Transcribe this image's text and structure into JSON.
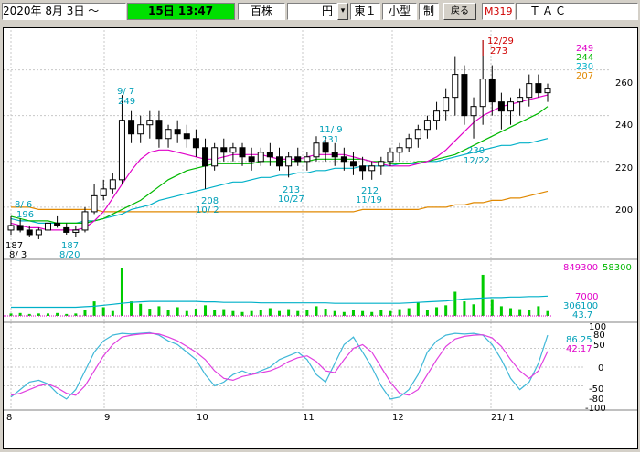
{
  "toolbar": {
    "date_label": "2020年 8月 3日 ～",
    "time_value": "15日 13:47",
    "kind": "百株",
    "currency": "円",
    "currency_arrow": "▾",
    "market": "東１",
    "size": "小型",
    "system": "制",
    "back_button": "戻る",
    "code": "M319",
    "company": "ＴＡＣ"
  },
  "colors": {
    "price": "#000000",
    "ma_short": "#e000c8",
    "ma_mid": "#00b800",
    "ma_long": "#00b0c8",
    "ma_xlong": "#e08800",
    "volume": "#00cc00",
    "stoch_k": "#40b8d8",
    "stoch_d": "#e040e0",
    "label_teal": "#00a0b8",
    "label_red": "#d00000",
    "time_bg": "#00e000"
  },
  "chart_data": [
    {
      "type": "candlestick",
      "ylim": [
        180,
        275
      ],
      "yticks": [
        "260",
        "240",
        "220",
        "200"
      ],
      "ma_legend": [
        "249",
        "244",
        "230",
        "207"
      ],
      "xticks": [
        "8",
        "9",
        "10",
        "11",
        "12",
        "21/ 1"
      ],
      "annotations": {
        "low_8_3_price": "187",
        "low_8_3_date": "8/ 3",
        "high_8_6_date": "8/ 6",
        "high_8_6_price": "196",
        "low_8_20_price": "187",
        "low_8_20_date": "8/20",
        "high_9_7_date": "9/ 7",
        "high_9_7_price": "249",
        "low_10_2_price": "208",
        "low_10_2_date": "10/ 2",
        "low_10_27_price": "213",
        "low_10_27_date": "10/27",
        "high_11_9_date": "11/ 9",
        "high_11_9_price": "231",
        "low_11_19_price": "212",
        "low_11_19_date": "11/19",
        "high_12_29_date": "12/29",
        "high_12_29_price": "273",
        "low_12_22_price": "230",
        "low_12_22_date": "12/22"
      },
      "ma_short": [
        193,
        192,
        191,
        191,
        190,
        190,
        190,
        190,
        191,
        194,
        198,
        204,
        210,
        216,
        221,
        224,
        225,
        225,
        224,
        223,
        222,
        221,
        221,
        222,
        223,
        223,
        223,
        223,
        222,
        221,
        221,
        221,
        222,
        223,
        223,
        223,
        223,
        222,
        221,
        220,
        219,
        218,
        218,
        218,
        219,
        220,
        222,
        225,
        229,
        233,
        237,
        240,
        242,
        244,
        245,
        246,
        247,
        248,
        249
      ],
      "ma_mid": [
        196,
        195,
        194,
        194,
        194,
        193,
        193,
        193,
        193,
        194,
        195,
        197,
        199,
        201,
        203,
        206,
        209,
        212,
        214,
        216,
        217,
        218,
        219,
        219,
        219,
        219,
        219,
        220,
        220,
        220,
        220,
        220,
        220,
        221,
        221,
        221,
        221,
        221,
        221,
        220,
        220,
        219,
        219,
        219,
        220,
        220,
        221,
        222,
        223,
        225,
        227,
        229,
        231,
        233,
        235,
        237,
        239,
        241,
        244
      ],
      "ma_long": [
        195,
        194,
        194,
        193,
        193,
        193,
        193,
        193,
        194,
        194,
        195,
        196,
        197,
        199,
        200,
        201,
        203,
        204,
        205,
        206,
        207,
        208,
        209,
        210,
        211,
        211,
        212,
        213,
        213,
        214,
        214,
        215,
        215,
        216,
        216,
        217,
        217,
        217,
        218,
        218,
        218,
        218,
        219,
        219,
        219,
        220,
        220,
        221,
        222,
        223,
        224,
        225,
        226,
        227,
        227,
        228,
        228,
        229,
        230
      ],
      "ma_xlong": [
        200,
        200,
        200,
        199,
        199,
        199,
        199,
        199,
        199,
        199,
        198,
        198,
        198,
        198,
        198,
        198,
        198,
        198,
        198,
        198,
        198,
        198,
        198,
        198,
        198,
        198,
        198,
        198,
        198,
        198,
        198,
        198,
        198,
        198,
        198,
        198,
        198,
        198,
        199,
        199,
        199,
        199,
        199,
        199,
        199,
        200,
        200,
        200,
        201,
        201,
        202,
        202,
        203,
        203,
        204,
        204,
        205,
        206,
        207
      ],
      "candles": [
        [
          190,
          196,
          188,
          192
        ],
        [
          192,
          195,
          189,
          190
        ],
        [
          190,
          192,
          187,
          188
        ],
        [
          188,
          191,
          186,
          190
        ],
        [
          190,
          194,
          189,
          193
        ],
        [
          193,
          196,
          191,
          192
        ],
        [
          191,
          193,
          188,
          189
        ],
        [
          189,
          192,
          187,
          190
        ],
        [
          190,
          200,
          189,
          198
        ],
        [
          198,
          210,
          197,
          205
        ],
        [
          205,
          212,
          203,
          208
        ],
        [
          208,
          215,
          206,
          212
        ],
        [
          212,
          249,
          210,
          238
        ],
        [
          238,
          242,
          228,
          232
        ],
        [
          232,
          240,
          228,
          236
        ],
        [
          236,
          242,
          230,
          238
        ],
        [
          238,
          242,
          226,
          230
        ],
        [
          230,
          236,
          226,
          234
        ],
        [
          234,
          238,
          228,
          232
        ],
        [
          232,
          236,
          226,
          230
        ],
        [
          230,
          234,
          222,
          226
        ],
        [
          226,
          230,
          208,
          218
        ],
        [
          218,
          228,
          216,
          226
        ],
        [
          226,
          230,
          220,
          224
        ],
        [
          224,
          228,
          220,
          226
        ],
        [
          226,
          228,
          218,
          222
        ],
        [
          222,
          226,
          216,
          220
        ],
        [
          220,
          226,
          218,
          224
        ],
        [
          224,
          228,
          218,
          222
        ],
        [
          222,
          226,
          216,
          218
        ],
        [
          218,
          224,
          213,
          222
        ],
        [
          222,
          226,
          218,
          220
        ],
        [
          220,
          224,
          216,
          222
        ],
        [
          222,
          231,
          220,
          228
        ],
        [
          228,
          231,
          220,
          224
        ],
        [
          224,
          228,
          218,
          222
        ],
        [
          222,
          226,
          216,
          220
        ],
        [
          220,
          224,
          214,
          218
        ],
        [
          218,
          222,
          212,
          216
        ],
        [
          216,
          220,
          212,
          218
        ],
        [
          218,
          222,
          214,
          220
        ],
        [
          220,
          226,
          218,
          224
        ],
        [
          224,
          228,
          220,
          226
        ],
        [
          226,
          232,
          224,
          230
        ],
        [
          230,
          236,
          226,
          234
        ],
        [
          234,
          240,
          230,
          238
        ],
        [
          238,
          246,
          234,
          242
        ],
        [
          242,
          252,
          238,
          248
        ],
        [
          248,
          266,
          240,
          258
        ],
        [
          258,
          262,
          236,
          240
        ],
        [
          240,
          248,
          230,
          244
        ],
        [
          244,
          273,
          236,
          256
        ],
        [
          256,
          262,
          240,
          246
        ],
        [
          246,
          250,
          234,
          242
        ],
        [
          242,
          248,
          236,
          246
        ],
        [
          246,
          252,
          240,
          248
        ],
        [
          248,
          258,
          244,
          254
        ],
        [
          254,
          258,
          248,
          250
        ],
        [
          250,
          254,
          246,
          252
        ]
      ]
    },
    {
      "type": "bar",
      "name_values": [
        "849300",
        "58300",
        "7000",
        "306100",
        "43.7"
      ],
      "vol_ma": [
        0.18,
        0.18,
        0.18,
        0.18,
        0.18,
        0.18,
        0.18,
        0.18,
        0.19,
        0.2,
        0.22,
        0.24,
        0.26,
        0.28,
        0.29,
        0.3,
        0.3,
        0.3,
        0.3,
        0.3,
        0.3,
        0.29,
        0.29,
        0.28,
        0.28,
        0.28,
        0.28,
        0.27,
        0.27,
        0.27,
        0.27,
        0.27,
        0.27,
        0.27,
        0.27,
        0.26,
        0.26,
        0.26,
        0.26,
        0.26,
        0.26,
        0.26,
        0.26,
        0.27,
        0.28,
        0.29,
        0.3,
        0.31,
        0.33,
        0.35,
        0.36,
        0.37,
        0.38,
        0.38,
        0.39,
        0.39,
        0.4,
        0.4,
        0.41
      ],
      "values": [
        0.05,
        0.06,
        0.04,
        0.05,
        0.05,
        0.06,
        0.04,
        0.05,
        0.12,
        0.3,
        0.18,
        0.1,
        1.0,
        0.3,
        0.25,
        0.15,
        0.2,
        0.12,
        0.18,
        0.1,
        0.15,
        0.22,
        0.12,
        0.14,
        0.1,
        0.08,
        0.1,
        0.12,
        0.16,
        0.1,
        0.14,
        0.1,
        0.12,
        0.2,
        0.15,
        0.1,
        0.08,
        0.12,
        0.1,
        0.08,
        0.12,
        0.1,
        0.14,
        0.16,
        0.28,
        0.12,
        0.18,
        0.22,
        0.5,
        0.3,
        0.24,
        0.85,
        0.35,
        0.2,
        0.16,
        0.14,
        0.12,
        0.2,
        0.1
      ]
    },
    {
      "type": "line",
      "yticks_left": [
        "100",
        "80",
        "50",
        "0",
        "-50",
        "-80",
        "-100"
      ],
      "values_right": [
        "86.25",
        "42.17"
      ],
      "ylim": [
        -100,
        100
      ],
      "series": [
        {
          "values": [
            -80,
            -60,
            -40,
            -35,
            -45,
            -70,
            -85,
            -60,
            -10,
            40,
            70,
            85,
            90,
            88,
            90,
            92,
            85,
            70,
            60,
            40,
            20,
            -20,
            -50,
            -40,
            -20,
            -10,
            -20,
            -10,
            0,
            20,
            30,
            40,
            20,
            -20,
            -40,
            10,
            60,
            80,
            40,
            0,
            -50,
            -85,
            -80,
            -60,
            -20,
            40,
            70,
            85,
            90,
            88,
            90,
            85,
            60,
            20,
            -30,
            -60,
            -40,
            10,
            85
          ]
        },
        {
          "values": [
            -75,
            -70,
            -60,
            -50,
            -45,
            -55,
            -70,
            -75,
            -50,
            -10,
            30,
            60,
            80,
            85,
            88,
            90,
            88,
            80,
            70,
            55,
            40,
            20,
            -10,
            -30,
            -35,
            -25,
            -20,
            -15,
            -10,
            0,
            15,
            25,
            30,
            15,
            -10,
            -15,
            20,
            50,
            60,
            40,
            0,
            -40,
            -70,
            -75,
            -60,
            -20,
            20,
            55,
            75,
            82,
            85,
            86,
            78,
            55,
            20,
            -10,
            -30,
            -10,
            42
          ]
        }
      ]
    }
  ]
}
